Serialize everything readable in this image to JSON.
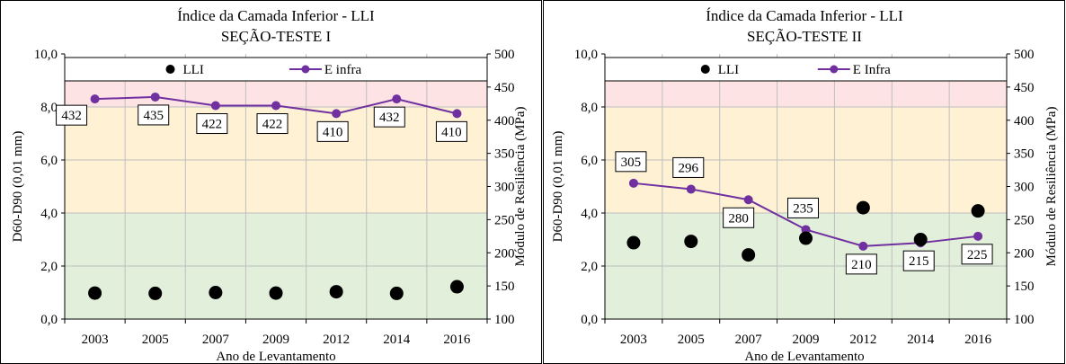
{
  "colors": {
    "zone_red": "#fde3e4",
    "zone_yellow": "#fef1d4",
    "zone_green": "#e2efda",
    "grid": "#bfbfbf",
    "series_line": "#7030a0",
    "series_marker": "#7030a0",
    "llI_marker": "#000000"
  },
  "chart_data": [
    {
      "type": "line",
      "title": "Índice da Camada Inferior - LLI",
      "subtitle": "SEÇÃO-TESTE I",
      "xlabel": "Ano de Levantamento",
      "ylabel": "D60-D90 (0,01 mm)",
      "y2label": "Módulo de Resiliência (MPa)",
      "categories": [
        "2003",
        "2005",
        "2007",
        "2009",
        "2012",
        "2014",
        "2016"
      ],
      "ylim": [
        0,
        10
      ],
      "y_ticks": [
        "0,0",
        "2,0",
        "4,0",
        "6,0",
        "8,0",
        "10,0"
      ],
      "y2lim": [
        100,
        500
      ],
      "y2_ticks": [
        "100",
        "150",
        "200",
        "250",
        "300",
        "350",
        "400",
        "450",
        "500"
      ],
      "zones": [
        {
          "from": 0,
          "to": 4,
          "color": "green"
        },
        {
          "from": 4,
          "to": 8,
          "color": "yellow"
        },
        {
          "from": 8,
          "to": 9.2,
          "color": "red"
        }
      ],
      "grid": true,
      "legend": {
        "position": "top",
        "entries": [
          "LLI",
          "E infra"
        ]
      },
      "series": [
        {
          "name": "LLI",
          "kind": "scatter",
          "axis": "left",
          "values": [
            0.98,
            0.97,
            1.0,
            0.98,
            1.03,
            0.97,
            1.22
          ]
        },
        {
          "name": "E infra",
          "kind": "line",
          "axis": "right",
          "values": [
            432,
            435,
            422,
            422,
            410,
            432,
            410
          ],
          "labels": [
            "432",
            "435",
            "422",
            "422",
            "410",
            "432",
            "410"
          ]
        }
      ]
    },
    {
      "type": "line",
      "title": "Índice da Camada Inferior - LLI",
      "subtitle": "SEÇÃO-TESTE II",
      "xlabel": "Ano de Levantamento",
      "ylabel": "D60-D90 (0,01 mm)",
      "y2label": "Módulo de Resiliência (MPa)",
      "categories": [
        "2003",
        "2005",
        "2007",
        "2009",
        "2012",
        "2014",
        "2016"
      ],
      "ylim": [
        0,
        10
      ],
      "y_ticks": [
        "0,0",
        "2,0",
        "4,0",
        "6,0",
        "8,0",
        "10,0"
      ],
      "y2lim": [
        100,
        500
      ],
      "y2_ticks": [
        "100",
        "150",
        "200",
        "250",
        "300",
        "350",
        "400",
        "450",
        "500"
      ],
      "zones": [
        {
          "from": 0,
          "to": 4,
          "color": "green"
        },
        {
          "from": 4,
          "to": 8,
          "color": "yellow"
        },
        {
          "from": 8,
          "to": 9.2,
          "color": "red"
        }
      ],
      "grid": true,
      "legend": {
        "position": "top",
        "entries": [
          "LLI",
          "E Infra"
        ]
      },
      "series": [
        {
          "name": "LLI",
          "kind": "scatter",
          "axis": "left",
          "values": [
            2.88,
            2.93,
            2.42,
            3.05,
            4.2,
            3.0,
            4.08
          ]
        },
        {
          "name": "E Infra",
          "kind": "line",
          "axis": "right",
          "values": [
            305,
            296,
            280,
            235,
            210,
            215,
            225
          ],
          "labels": [
            "305",
            "296",
            "280",
            "235",
            "210",
            "215",
            "225"
          ]
        }
      ]
    }
  ]
}
